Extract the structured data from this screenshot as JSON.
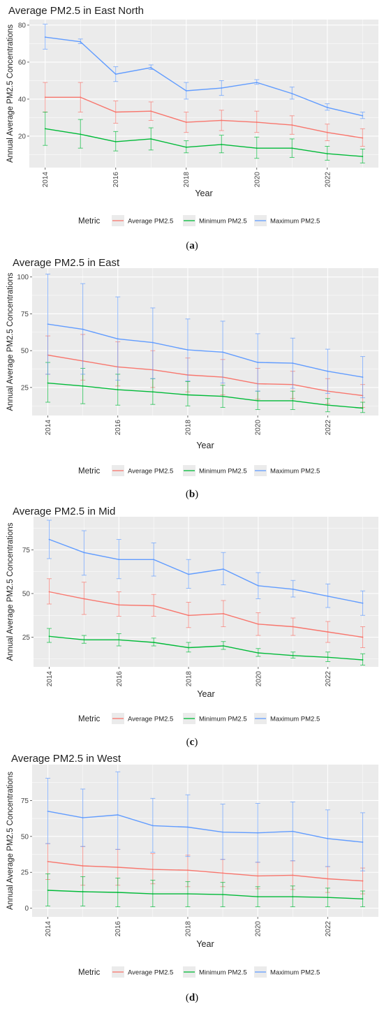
{
  "metric_label": "Metric",
  "colors": {
    "average": "#F8766D",
    "minimum": "#00BA38",
    "maximum": "#619CFF",
    "panel_bg": "#EBEBEB",
    "grid": "#FFFFFF"
  },
  "chart_data": [
    {
      "type": "line",
      "panel": "a",
      "title": "Average PM2.5 in East North",
      "xlabel": "Year",
      "ylabel": "Annual Average PM2.5 Concentrations",
      "x": [
        2014,
        2015,
        2016,
        2017,
        2018,
        2019,
        2020,
        2021,
        2022,
        2023
      ],
      "x_ticks": [
        2014,
        2016,
        2018,
        2020,
        2022
      ],
      "x_tick_labels": [
        "2014",
        "2016",
        "2018",
        "2020",
        "2022"
      ],
      "y_ticks": [
        20,
        40,
        60,
        80
      ],
      "y_tick_labels": [
        "20",
        "40",
        "60",
        "80"
      ],
      "ylim": [
        3,
        83
      ],
      "grid": true,
      "legend": "bottom",
      "series": [
        {
          "name": "Average PM2.5",
          "key": "average",
          "values": [
            41,
            41,
            33,
            33.5,
            27.5,
            28.5,
            27.5,
            26,
            22,
            19
          ],
          "error_low": [
            33,
            33,
            27,
            28.5,
            22,
            23,
            22,
            21,
            17.5,
            14.5
          ],
          "error_high": [
            49,
            49,
            39,
            38.5,
            33,
            34,
            33.5,
            31,
            26.5,
            24
          ]
        },
        {
          "name": "Minimum PM2.5",
          "key": "minimum",
          "values": [
            24,
            21,
            17,
            18.5,
            14,
            15.5,
            13.5,
            13.5,
            10.5,
            9
          ],
          "error_low": [
            15,
            13.5,
            12,
            12.5,
            11,
            11,
            8,
            8.5,
            7,
            5.5
          ],
          "error_high": [
            33,
            29,
            22.5,
            24.5,
            17.5,
            20.5,
            19.5,
            18.5,
            14.5,
            13
          ]
        },
        {
          "name": "Maximum PM2.5",
          "key": "maximum",
          "values": [
            73.5,
            71,
            53.5,
            57,
            44.5,
            46,
            49,
            43,
            35.5,
            31
          ],
          "error_low": [
            67,
            70,
            49.5,
            56,
            40,
            42,
            48,
            40,
            34,
            29.5
          ],
          "error_high": [
            80.5,
            72.5,
            57.5,
            58.5,
            49,
            50,
            50.5,
            46.5,
            37.5,
            33
          ]
        }
      ]
    },
    {
      "type": "line",
      "panel": "b",
      "title": "Average PM2.5 in East",
      "xlabel": "Year",
      "ylabel": "Annual Average PM2.5 Concentrations",
      "x": [
        2014,
        2015,
        2016,
        2017,
        2018,
        2019,
        2020,
        2021,
        2022,
        2023
      ],
      "x_ticks": [
        2014,
        2016,
        2018,
        2020,
        2022
      ],
      "x_tick_labels": [
        "2014",
        "2016",
        "2018",
        "2020",
        "2022"
      ],
      "y_ticks": [
        25,
        50,
        75,
        100
      ],
      "y_tick_labels": [
        "25",
        "50",
        "75",
        "100"
      ],
      "ylim": [
        6,
        106
      ],
      "grid": true,
      "legend": "bottom",
      "series": [
        {
          "name": "Average PM2.5",
          "key": "average",
          "values": [
            47,
            43,
            39,
            37,
            33.5,
            32,
            27.5,
            27,
            22.5,
            19.5
          ],
          "error_low": [
            34,
            30,
            26,
            25,
            22,
            20,
            17,
            17.5,
            14,
            11.5
          ],
          "error_high": [
            60,
            61,
            56,
            50,
            45,
            44,
            38,
            36,
            31,
            27
          ]
        },
        {
          "name": "Minimum PM2.5",
          "key": "minimum",
          "values": [
            28,
            26,
            23.5,
            22,
            20,
            19,
            16,
            16,
            13,
            11
          ],
          "error_low": [
            15,
            14,
            13,
            13.5,
            12.5,
            11.5,
            10,
            10,
            8.5,
            8
          ],
          "error_high": [
            42,
            38,
            34,
            31,
            29,
            26.5,
            22.5,
            22.5,
            17.5,
            15
          ]
        },
        {
          "name": "Maximum PM2.5",
          "key": "maximum",
          "values": [
            68,
            64.5,
            58,
            55.5,
            50.5,
            49,
            42,
            41.5,
            36,
            32
          ],
          "error_low": [
            34,
            34,
            30,
            31,
            29.5,
            28,
            22.5,
            24.5,
            21,
            18
          ],
          "error_high": [
            102,
            95.5,
            86.5,
            79,
            71.5,
            70,
            61.5,
            58.5,
            51,
            46
          ]
        }
      ]
    },
    {
      "type": "line",
      "panel": "c",
      "title": "Average PM2.5 in Mid",
      "xlabel": "Year",
      "ylabel": "Annual Average PM2.5 Concentrations",
      "x": [
        2014,
        2015,
        2016,
        2017,
        2018,
        2019,
        2020,
        2021,
        2022,
        2023
      ],
      "x_ticks": [
        2014,
        2016,
        2018,
        2020,
        2022
      ],
      "x_tick_labels": [
        "2014",
        "2016",
        "2018",
        "2020",
        "2022"
      ],
      "y_ticks": [
        25,
        50,
        75
      ],
      "y_tick_labels": [
        "25",
        "50",
        "75"
      ],
      "ylim": [
        8,
        94
      ],
      "grid": true,
      "legend": "bottom",
      "series": [
        {
          "name": "Average PM2.5",
          "key": "average",
          "values": [
            51,
            47,
            43.5,
            43,
            37.5,
            38.5,
            32.5,
            31,
            28,
            25
          ],
          "error_low": [
            44,
            38,
            37,
            37,
            30.5,
            31,
            26,
            26,
            22,
            19
          ],
          "error_high": [
            58.5,
            56.5,
            51,
            49.5,
            45,
            46,
            39,
            36,
            34,
            31
          ]
        },
        {
          "name": "Minimum PM2.5",
          "key": "minimum",
          "values": [
            25.5,
            23.5,
            23.5,
            22,
            19,
            20,
            16,
            14.5,
            13.5,
            12
          ],
          "error_low": [
            22,
            21.5,
            20,
            20,
            16.5,
            18,
            14,
            13,
            11,
            9
          ],
          "error_high": [
            30,
            26,
            27,
            24.5,
            22,
            22.5,
            18.5,
            16.5,
            16.5,
            15.5
          ]
        },
        {
          "name": "Maximum PM2.5",
          "key": "maximum",
          "values": [
            81,
            73.5,
            69.5,
            69.5,
            61,
            64,
            54.5,
            52.5,
            48.5,
            44.5
          ],
          "error_low": [
            70,
            60.5,
            58.5,
            60,
            53,
            55,
            47,
            48,
            42,
            37.5
          ],
          "error_high": [
            92,
            86,
            81,
            79,
            69.5,
            73.5,
            62,
            57.5,
            55.5,
            51.5
          ]
        }
      ]
    },
    {
      "type": "line",
      "panel": "d",
      "title": "Average PM2.5 in West",
      "xlabel": "Year",
      "ylabel": "Annual Average PM2.5 Concentrations",
      "x": [
        2014,
        2015,
        2016,
        2017,
        2018,
        2019,
        2020,
        2021,
        2022,
        2023
      ],
      "x_ticks": [
        2014,
        2016,
        2018,
        2020,
        2022
      ],
      "x_tick_labels": [
        "2014",
        "2016",
        "2018",
        "2020",
        "2022"
      ],
      "y_ticks": [
        0,
        25,
        50,
        75
      ],
      "y_tick_labels": [
        "0",
        "25",
        "50",
        "75"
      ],
      "ylim": [
        -6,
        100
      ],
      "grid": true,
      "legend": "bottom",
      "series": [
        {
          "name": "Average PM2.5",
          "key": "average",
          "values": [
            32.5,
            29.5,
            28.5,
            27,
            26.5,
            24.5,
            22.5,
            23,
            20.5,
            19
          ],
          "error_low": [
            20,
            16,
            16,
            17,
            15,
            15,
            13.5,
            13,
            11,
            10
          ],
          "error_high": [
            45,
            43,
            41,
            38,
            37,
            34,
            32,
            33,
            29,
            28
          ]
        },
        {
          "name": "Minimum PM2.5",
          "key": "minimum",
          "values": [
            12.5,
            11.5,
            11,
            10,
            10,
            9.5,
            8,
            8,
            7.5,
            6.5
          ],
          "error_low": [
            1.5,
            1.5,
            1,
            1,
            1,
            1,
            1,
            1,
            1,
            1
          ],
          "error_high": [
            24,
            22,
            21,
            19.5,
            18.5,
            18,
            15,
            15.5,
            14,
            12
          ]
        },
        {
          "name": "Maximum PM2.5",
          "key": "maximum",
          "values": [
            67.5,
            63,
            65,
            57.5,
            56.5,
            53,
            52.5,
            53.5,
            48.5,
            46
          ],
          "error_low": [
            45,
            43,
            41,
            39,
            36,
            34,
            32,
            33,
            29,
            26
          ],
          "error_high": [
            90.5,
            83,
            95,
            76.5,
            79,
            72.5,
            73,
            74,
            68.5,
            66.5
          ]
        }
      ]
    }
  ],
  "captions": [
    {
      "open": "(",
      "letter": "a",
      "close": ")"
    },
    {
      "open": "(",
      "letter": "b",
      "close": ")"
    },
    {
      "open": "(",
      "letter": "c",
      "close": ")"
    },
    {
      "open": "(",
      "letter": "d",
      "close": ")"
    }
  ]
}
